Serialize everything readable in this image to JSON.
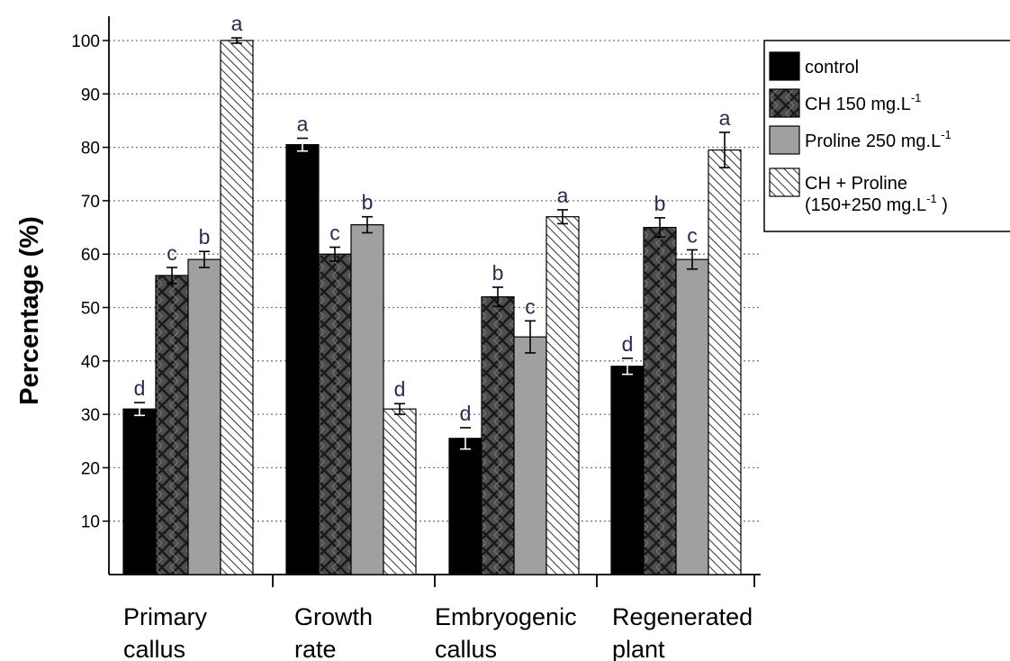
{
  "chart_data": {
    "type": "bar",
    "ylabel": "Percentage (%)",
    "xlabel": "",
    "ylim": [
      0,
      105
    ],
    "yticks": [
      10,
      20,
      30,
      40,
      50,
      60,
      70,
      80,
      90,
      100
    ],
    "grid": "horizontal dotted",
    "legend_position": "top-right",
    "categories": [
      [
        "Primary",
        "callus"
      ],
      [
        "Growth",
        "rate"
      ],
      [
        "Embryogenic",
        "callus"
      ],
      [
        "Regenerated",
        "plant"
      ]
    ],
    "series": [
      {
        "name": "control",
        "legend_lines": [
          "control"
        ],
        "legend_sup": "",
        "fill": "solid-black",
        "color": "#000000",
        "values": [
          31,
          80.5,
          25.5,
          39
        ],
        "errors": [
          1.2,
          1.2,
          2.0,
          1.5
        ],
        "letters": [
          "d",
          "a",
          "d",
          "d"
        ]
      },
      {
        "name": "CH 150 mg.L-1",
        "legend_lines": [
          "CH 150 mg.L"
        ],
        "legend_sup": "-1",
        "fill": "dark-gray-crosshatch",
        "color": "#4a4a4a",
        "values": [
          56,
          60,
          52,
          65
        ],
        "errors": [
          1.5,
          1.3,
          1.8,
          1.8
        ],
        "letters": [
          "c",
          "c",
          "b",
          "b"
        ]
      },
      {
        "name": "Proline 250 mg.L-1",
        "legend_lines": [
          "Proline 250 mg.L"
        ],
        "legend_sup": "-1",
        "fill": "solid-gray",
        "color": "#a0a0a0",
        "values": [
          59,
          65.5,
          44.5,
          59
        ],
        "errors": [
          1.5,
          1.5,
          3.0,
          1.8
        ],
        "letters": [
          "b",
          "b",
          "c",
          "c"
        ]
      },
      {
        "name": "CH + Proline (150+250 mg.L-1)",
        "legend_lines": [
          "CH + Proline",
          "(150+250 mg.L"
        ],
        "legend_sup": "-1",
        "legend_close": " )",
        "fill": "diagonal-hatch",
        "color": "#ffffff",
        "values": [
          100,
          31,
          67,
          79.5
        ],
        "errors": [
          0.5,
          1.0,
          1.3,
          3.3
        ],
        "letters": [
          "a",
          "d",
          "a",
          "a"
        ]
      }
    ]
  }
}
